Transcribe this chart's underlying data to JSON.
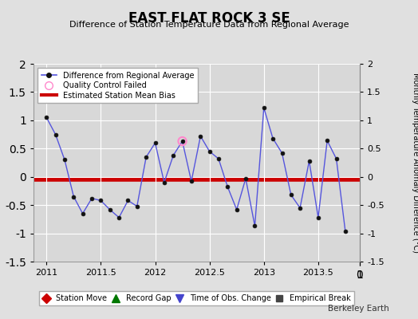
{
  "title": "EAST FLAT ROCK 3 SE",
  "subtitle": "Difference of Station Temperature Data from Regional Average",
  "ylabel_right": "Monthly Temperature Anomaly Difference (°C)",
  "credit": "Berkeley Earth",
  "xlim": [
    2010.88,
    2013.88
  ],
  "ylim": [
    -1.5,
    2.0
  ],
  "yticks": [
    -1.5,
    -1.0,
    -0.5,
    0.0,
    0.5,
    1.0,
    1.5,
    2.0
  ],
  "xticks": [
    2011.0,
    2011.5,
    2012.0,
    2012.5,
    2013.0,
    2013.5
  ],
  "xticklabels": [
    "2011",
    "2011.5",
    "2012",
    "2012.5",
    "2013",
    "2013.5"
  ],
  "bias_value": -0.04,
  "line_color": "#5555dd",
  "marker_color": "#111111",
  "bias_color": "#cc0000",
  "bg_color": "#e0e0e0",
  "plot_bg_color": "#d8d8d8",
  "x": [
    2011.0,
    2011.083,
    2011.167,
    2011.25,
    2011.333,
    2011.417,
    2011.5,
    2011.583,
    2011.667,
    2011.75,
    2011.833,
    2011.917,
    2012.0,
    2012.083,
    2012.167,
    2012.25,
    2012.333,
    2012.417,
    2012.5,
    2012.583,
    2012.667,
    2012.75,
    2012.833,
    2012.917,
    2013.0,
    2013.083,
    2013.167,
    2013.25,
    2013.333,
    2013.417,
    2013.5,
    2013.583,
    2013.667,
    2013.75
  ],
  "y": [
    1.05,
    0.75,
    0.3,
    -0.35,
    -0.65,
    -0.38,
    -0.42,
    -0.58,
    -0.72,
    -0.42,
    -0.52,
    0.35,
    0.6,
    -0.1,
    0.38,
    0.63,
    -0.08,
    0.72,
    0.45,
    0.32,
    -0.18,
    -0.58,
    -0.03,
    -0.87,
    1.22,
    0.68,
    0.42,
    -0.32,
    -0.55,
    0.28,
    -0.72,
    0.64,
    0.32,
    -0.97
  ],
  "qc_x": [
    2012.25
  ],
  "qc_y": [
    0.63
  ]
}
